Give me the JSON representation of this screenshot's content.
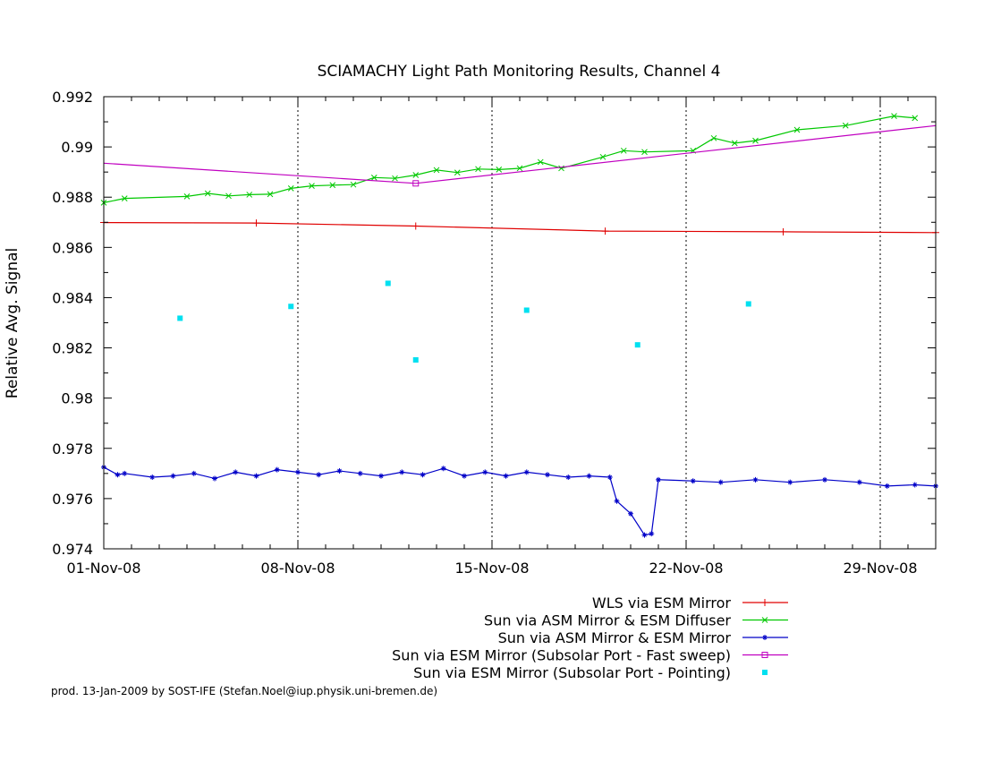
{
  "chart_data": {
    "type": "line",
    "title": "SCIAMACHY Light Path Monitoring Results, Channel 4",
    "xlabel": "",
    "ylabel": "Relative Avg. Signal",
    "x_unit": "date",
    "xlim": [
      "2008-11-01",
      "2008-12-01"
    ],
    "ylim": [
      0.974,
      0.992
    ],
    "grid": true,
    "legend_position": "bottom-right, below plot",
    "x_ticks": [
      {
        "date": "2008-11-01",
        "label": "01-Nov-08"
      },
      {
        "date": "2008-11-08",
        "label": "08-Nov-08"
      },
      {
        "date": "2008-11-15",
        "label": "15-Nov-08"
      },
      {
        "date": "2008-11-22",
        "label": "22-Nov-08"
      },
      {
        "date": "2008-11-29",
        "label": "29-Nov-08"
      }
    ],
    "y_ticks": [
      {
        "value": 0.974,
        "label": "0.974"
      },
      {
        "value": 0.976,
        "label": "0.976"
      },
      {
        "value": 0.978,
        "label": "0.978"
      },
      {
        "value": 0.98,
        "label": "0.98"
      },
      {
        "value": 0.982,
        "label": "0.982"
      },
      {
        "value": 0.984,
        "label": "0.984"
      },
      {
        "value": 0.986,
        "label": "0.986"
      },
      {
        "value": 0.988,
        "label": "0.988"
      },
      {
        "value": 0.99,
        "label": "0.99"
      },
      {
        "value": 0.992,
        "label": "0.992"
      }
    ],
    "series": [
      {
        "name": "WLS via ESM Mirror",
        "color": "#e00000",
        "marker": "plus",
        "points": [
          {
            "x": "2008-11-01 00:00",
            "y": 0.98699
          },
          {
            "x": "2008-11-06 12:00",
            "y": 0.98697
          },
          {
            "x": "2008-11-12 06:00",
            "y": 0.98685
          },
          {
            "x": "2008-11-19 02:00",
            "y": 0.98665
          },
          {
            "x": "2008-11-25 12:00",
            "y": 0.98662
          },
          {
            "x": "2008-12-01 00:00",
            "y": 0.98659
          }
        ]
      },
      {
        "name": "Sun via ASM Mirror & ESM Diffuser",
        "color": "#00c800",
        "marker": "x",
        "points": [
          {
            "x": "2008-11-01 00:00",
            "y": 0.98778
          },
          {
            "x": "2008-11-01 18:00",
            "y": 0.98795
          },
          {
            "x": "2008-11-04 00:00",
            "y": 0.98803
          },
          {
            "x": "2008-11-04 18:00",
            "y": 0.98815
          },
          {
            "x": "2008-11-05 12:00",
            "y": 0.98805
          },
          {
            "x": "2008-11-06 06:00",
            "y": 0.9881
          },
          {
            "x": "2008-11-07 00:00",
            "y": 0.98812
          },
          {
            "x": "2008-11-07 18:00",
            "y": 0.98835
          },
          {
            "x": "2008-11-08 12:00",
            "y": 0.98845
          },
          {
            "x": "2008-11-09 06:00",
            "y": 0.98848
          },
          {
            "x": "2008-11-10 00:00",
            "y": 0.9885
          },
          {
            "x": "2008-11-10 18:00",
            "y": 0.98878
          },
          {
            "x": "2008-11-11 12:00",
            "y": 0.98875
          },
          {
            "x": "2008-11-12 06:00",
            "y": 0.98888
          },
          {
            "x": "2008-11-13 00:00",
            "y": 0.98908
          },
          {
            "x": "2008-11-13 18:00",
            "y": 0.98898
          },
          {
            "x": "2008-11-14 12:00",
            "y": 0.98912
          },
          {
            "x": "2008-11-15 06:00",
            "y": 0.9891
          },
          {
            "x": "2008-11-16 00:00",
            "y": 0.98915
          },
          {
            "x": "2008-11-16 18:00",
            "y": 0.9894
          },
          {
            "x": "2008-11-17 12:00",
            "y": 0.98915
          },
          {
            "x": "2008-11-19 00:00",
            "y": 0.9896
          },
          {
            "x": "2008-11-19 18:00",
            "y": 0.98985
          },
          {
            "x": "2008-11-20 12:00",
            "y": 0.9898
          },
          {
            "x": "2008-11-22 06:00",
            "y": 0.98985
          },
          {
            "x": "2008-11-23 00:00",
            "y": 0.99035
          },
          {
            "x": "2008-11-23 18:00",
            "y": 0.99015
          },
          {
            "x": "2008-11-24 12:00",
            "y": 0.99025
          },
          {
            "x": "2008-11-26 00:00",
            "y": 0.99068
          },
          {
            "x": "2008-11-27 18:00",
            "y": 0.99085
          },
          {
            "x": "2008-11-29 12:00",
            "y": 0.99123
          },
          {
            "x": "2008-11-30 06:00",
            "y": 0.99115
          }
        ]
      },
      {
        "name": "Sun via ASM Mirror & ESM Mirror",
        "color": "#0000c8",
        "marker": "star",
        "points": [
          {
            "x": "2008-11-01 00:00",
            "y": 0.97725
          },
          {
            "x": "2008-11-01 12:00",
            "y": 0.97695
          },
          {
            "x": "2008-11-01 18:00",
            "y": 0.977
          },
          {
            "x": "2008-11-02 18:00",
            "y": 0.97685
          },
          {
            "x": "2008-11-03 12:00",
            "y": 0.9769
          },
          {
            "x": "2008-11-04 06:00",
            "y": 0.977
          },
          {
            "x": "2008-11-05 00:00",
            "y": 0.9768
          },
          {
            "x": "2008-11-05 18:00",
            "y": 0.97705
          },
          {
            "x": "2008-11-06 12:00",
            "y": 0.9769
          },
          {
            "x": "2008-11-07 06:00",
            "y": 0.97715
          },
          {
            "x": "2008-11-08 00:00",
            "y": 0.97705
          },
          {
            "x": "2008-11-08 18:00",
            "y": 0.97695
          },
          {
            "x": "2008-11-09 12:00",
            "y": 0.9771
          },
          {
            "x": "2008-11-10 06:00",
            "y": 0.977
          },
          {
            "x": "2008-11-11 00:00",
            "y": 0.9769
          },
          {
            "x": "2008-11-11 18:00",
            "y": 0.97705
          },
          {
            "x": "2008-11-12 12:00",
            "y": 0.97695
          },
          {
            "x": "2008-11-13 06:00",
            "y": 0.9772
          },
          {
            "x": "2008-11-14 00:00",
            "y": 0.9769
          },
          {
            "x": "2008-11-14 18:00",
            "y": 0.97705
          },
          {
            "x": "2008-11-15 12:00",
            "y": 0.9769
          },
          {
            "x": "2008-11-16 06:00",
            "y": 0.97705
          },
          {
            "x": "2008-11-17 00:00",
            "y": 0.97695
          },
          {
            "x": "2008-11-17 18:00",
            "y": 0.97685
          },
          {
            "x": "2008-11-18 12:00",
            "y": 0.9769
          },
          {
            "x": "2008-11-19 06:00",
            "y": 0.97685
          },
          {
            "x": "2008-11-19 12:00",
            "y": 0.9759
          },
          {
            "x": "2008-11-20 00:00",
            "y": 0.9754
          },
          {
            "x": "2008-11-20 12:00",
            "y": 0.97455
          },
          {
            "x": "2008-11-20 18:00",
            "y": 0.9746
          },
          {
            "x": "2008-11-21 00:00",
            "y": 0.97675
          },
          {
            "x": "2008-11-22 06:00",
            "y": 0.9767
          },
          {
            "x": "2008-11-23 06:00",
            "y": 0.97665
          },
          {
            "x": "2008-11-24 12:00",
            "y": 0.97675
          },
          {
            "x": "2008-11-25 18:00",
            "y": 0.97665
          },
          {
            "x": "2008-11-27 00:00",
            "y": 0.97675
          },
          {
            "x": "2008-11-28 06:00",
            "y": 0.97665
          },
          {
            "x": "2008-11-29 06:00",
            "y": 0.9765
          },
          {
            "x": "2008-11-30 06:00",
            "y": 0.97655
          },
          {
            "x": "2008-12-01 00:00",
            "y": 0.9765
          }
        ]
      },
      {
        "name": "Sun via ESM Mirror (Subsolar Port - Fast sweep)",
        "color": "#c000c0",
        "marker": "square",
        "points": [
          {
            "x": "2008-11-01 00:00",
            "y": 0.98935
          },
          {
            "x": "2008-11-12 06:00",
            "y": 0.98855
          },
          {
            "x": "2008-12-01 00:00",
            "y": 0.99085
          }
        ],
        "marker_points": [
          {
            "x": "2008-11-12 06:00",
            "y": 0.98855
          }
        ]
      },
      {
        "name": "Sun via ESM Mirror (Subsolar Port - Pointing)",
        "color": "#00e0f0",
        "marker": "dot",
        "points": [
          {
            "x": "2008-11-03 18:00",
            "y": 0.98318
          },
          {
            "x": "2008-11-07 18:00",
            "y": 0.98365
          },
          {
            "x": "2008-11-11 06:00",
            "y": 0.98457
          },
          {
            "x": "2008-11-12 06:00",
            "y": 0.98152
          },
          {
            "x": "2008-11-16 06:00",
            "y": 0.9835
          },
          {
            "x": "2008-11-20 06:00",
            "y": 0.98212
          },
          {
            "x": "2008-11-24 06:00",
            "y": 0.98375
          }
        ]
      }
    ]
  },
  "footer": {
    "credit": "prod. 13-Jan-2009 by SOST-IFE (Stefan.Noel@iup.physik.uni-bremen.de)"
  }
}
